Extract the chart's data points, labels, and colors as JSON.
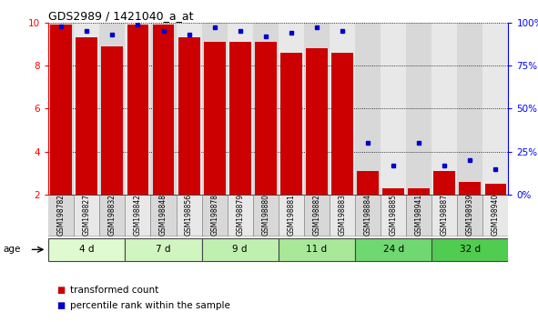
{
  "title": "GDS2989 / 1421040_a_at",
  "samples": [
    "GSM198782",
    "GSM198827",
    "GSM198832",
    "GSM198842",
    "GSM198848",
    "GSM198856",
    "GSM198878",
    "GSM198879",
    "GSM198880",
    "GSM198881",
    "GSM198882",
    "GSM198883",
    "GSM198884",
    "GSM198885",
    "GSM198941",
    "GSM198887",
    "GSM198939",
    "GSM198940"
  ],
  "red_values": [
    9.9,
    9.3,
    8.9,
    9.9,
    9.9,
    9.3,
    9.1,
    9.1,
    9.1,
    8.6,
    8.8,
    8.6,
    3.1,
    2.3,
    2.3,
    3.1,
    2.6,
    2.5
  ],
  "blue_values": [
    98,
    95,
    93,
    99,
    95,
    93,
    97,
    95,
    92,
    94,
    97,
    95,
    30,
    17,
    30,
    17,
    20,
    15
  ],
  "groups": [
    {
      "label": "4 d",
      "start": 0,
      "end": 3
    },
    {
      "label": "7 d",
      "start": 3,
      "end": 6
    },
    {
      "label": "9 d",
      "start": 6,
      "end": 9
    },
    {
      "label": "11 d",
      "start": 9,
      "end": 12
    },
    {
      "label": "24 d",
      "start": 12,
      "end": 15
    },
    {
      "label": "32 d",
      "start": 15,
      "end": 18
    }
  ],
  "group_colors": [
    "#e0fad0",
    "#d0f5c0",
    "#c0f0b0",
    "#a8e898",
    "#70d870",
    "#50cc50"
  ],
  "ylim_left": [
    2,
    10
  ],
  "ylim_right": [
    0,
    100
  ],
  "yticks_left": [
    2,
    4,
    6,
    8,
    10
  ],
  "yticks_right": [
    0,
    25,
    50,
    75,
    100
  ],
  "ytick_labels_right": [
    "0%",
    "25%",
    "50%",
    "75%",
    "100%"
  ],
  "bar_color": "#cc0000",
  "dot_color": "#0000cc",
  "bar_bottom": 2,
  "legend_red": "transformed count",
  "legend_blue": "percentile rank within the sample",
  "age_label": "age",
  "col_colors": [
    "#d8d8d8",
    "#e8e8e8"
  ]
}
